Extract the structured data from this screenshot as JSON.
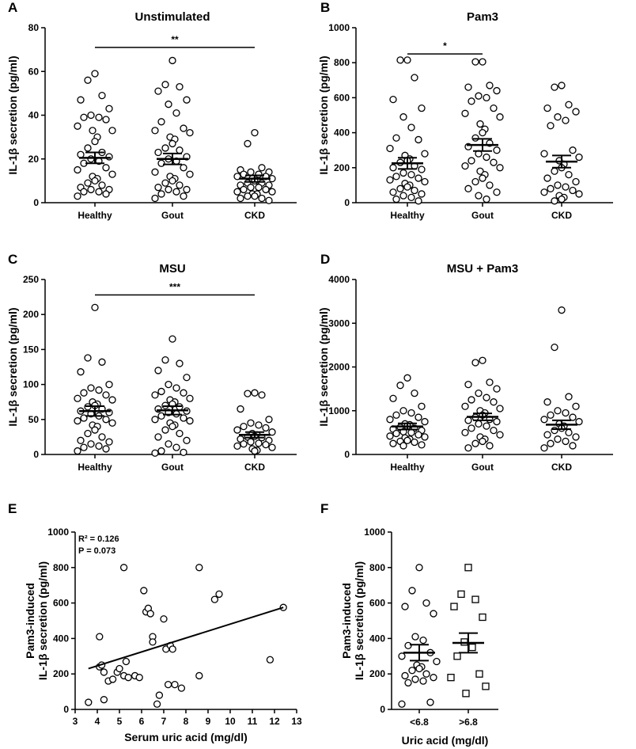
{
  "chart_data": [
    {
      "id": "A",
      "letter": "A",
      "type": "scatter",
      "title": "Unstimulated",
      "ylabel": "IL-1β secretion (pg/ml)",
      "ylim": [
        0,
        80
      ],
      "yticks": [
        0,
        20,
        40,
        60,
        80
      ],
      "categories": [
        "Healthy",
        "Gout",
        "CKD"
      ],
      "groups": [
        {
          "name": "Healthy",
          "mean": 20.5,
          "sem": 2.5,
          "values": [
            59,
            56,
            49,
            47,
            43,
            40,
            39,
            39,
            38,
            35,
            33,
            33,
            30,
            28,
            25,
            23,
            22,
            21,
            20,
            19,
            18,
            16,
            15,
            13,
            12,
            11,
            10,
            9,
            8,
            7,
            6,
            6,
            5,
            5,
            4,
            3
          ]
        },
        {
          "name": "Gout",
          "mean": 20.0,
          "sem": 2.5,
          "values": [
            65,
            54,
            53,
            51,
            47,
            45,
            41,
            37,
            34,
            33,
            32,
            30,
            29,
            27,
            25,
            24,
            23,
            21,
            20,
            19,
            18,
            16,
            14,
            13,
            12,
            11,
            10,
            9,
            8,
            7,
            6,
            6,
            5,
            4,
            3,
            2
          ]
        },
        {
          "name": "CKD",
          "mean": 11.0,
          "sem": 1.5,
          "values": [
            32,
            27,
            16,
            15,
            14,
            14,
            13,
            13,
            12,
            12,
            11,
            11,
            10,
            10,
            9,
            9,
            8,
            8,
            7,
            7,
            6,
            6,
            5,
            5,
            4,
            4,
            3,
            3,
            2,
            2,
            1
          ]
        }
      ],
      "sig": [
        {
          "from": "Healthy",
          "to": "CKD",
          "y": 71,
          "label": "**"
        }
      ]
    },
    {
      "id": "B",
      "letter": "B",
      "type": "scatter",
      "title": "Pam3",
      "ylabel": "IL-1β secretion (pg/ml)",
      "ylim": [
        0,
        1000
      ],
      "yticks": [
        0,
        200,
        400,
        600,
        800,
        1000
      ],
      "categories": [
        "Healthy",
        "Gout",
        "CKD"
      ],
      "groups": [
        {
          "name": "Healthy",
          "mean": 225,
          "sem": 32,
          "values": [
            815,
            815,
            715,
            590,
            540,
            490,
            430,
            370,
            360,
            310,
            280,
            270,
            250,
            240,
            230,
            210,
            200,
            190,
            170,
            160,
            150,
            140,
            130,
            120,
            110,
            100,
            90,
            80,
            70,
            60,
            50,
            40,
            30,
            20,
            10
          ]
        },
        {
          "name": "Gout",
          "mean": 330,
          "sem": 35,
          "values": [
            805,
            805,
            670,
            660,
            640,
            610,
            600,
            580,
            540,
            510,
            490,
            450,
            420,
            400,
            370,
            340,
            320,
            300,
            280,
            260,
            240,
            230,
            210,
            200,
            180,
            160,
            140,
            120,
            100,
            80,
            60,
            40,
            20
          ]
        },
        {
          "name": "CKD",
          "mean": 235,
          "sem": 35,
          "values": [
            670,
            660,
            560,
            540,
            520,
            490,
            470,
            440,
            300,
            280,
            260,
            240,
            220,
            200,
            180,
            160,
            140,
            120,
            100,
            90,
            80,
            70,
            60,
            50,
            40,
            30,
            20,
            10
          ]
        }
      ],
      "sig": [
        {
          "from": "Healthy",
          "to": "Gout",
          "y": 850,
          "label": "*"
        }
      ]
    },
    {
      "id": "C",
      "letter": "C",
      "type": "scatter",
      "title": "MSU",
      "ylabel": "IL-1β secretion (pg/ml)",
      "ylim": [
        0,
        250
      ],
      "yticks": [
        0,
        50,
        100,
        150,
        200,
        250
      ],
      "categories": [
        "Healthy",
        "Gout",
        "CKD"
      ],
      "groups": [
        {
          "name": "Healthy",
          "mean": 62,
          "sem": 7,
          "values": [
            210,
            138,
            132,
            118,
            100,
            95,
            92,
            88,
            85,
            80,
            78,
            75,
            72,
            70,
            68,
            65,
            62,
            60,
            58,
            55,
            52,
            50,
            48,
            45,
            42,
            40,
            35,
            30,
            25,
            20,
            18,
            15,
            12,
            10,
            8,
            5
          ]
        },
        {
          "name": "Gout",
          "mean": 63,
          "sem": 6,
          "values": [
            165,
            135,
            130,
            120,
            110,
            100,
            95,
            90,
            88,
            85,
            80,
            78,
            75,
            72,
            70,
            68,
            65,
            62,
            60,
            58,
            55,
            52,
            50,
            48,
            45,
            42,
            40,
            35,
            30,
            25,
            20,
            15,
            10,
            5,
            3,
            2
          ]
        },
        {
          "name": "CKD",
          "mean": 28,
          "sem": 4,
          "values": [
            88,
            87,
            85,
            65,
            50,
            45,
            42,
            40,
            38,
            35,
            32,
            30,
            28,
            26,
            25,
            24,
            22,
            20,
            18,
            16,
            15,
            14,
            12,
            10,
            8,
            6,
            5
          ]
        }
      ],
      "sig": [
        {
          "from": "Healthy",
          "to": "CKD",
          "y": 228,
          "label": "***"
        }
      ]
    },
    {
      "id": "D",
      "letter": "D",
      "type": "scatter",
      "title": "MSU + Pam3",
      "ylabel": "IL-1β secretion (pg/ml)",
      "ylim": [
        0,
        4000
      ],
      "yticks": [
        0,
        1000,
        2000,
        3000,
        4000
      ],
      "categories": [
        "Healthy",
        "Gout",
        "CKD"
      ],
      "groups": [
        {
          "name": "Healthy",
          "mean": 640,
          "sem": 70,
          "values": [
            1750,
            1580,
            1400,
            1280,
            1100,
            1000,
            950,
            900,
            850,
            800,
            750,
            700,
            680,
            650,
            620,
            600,
            580,
            550,
            520,
            500,
            480,
            450,
            420,
            400,
            380,
            350,
            320,
            300,
            280,
            250,
            220,
            200
          ]
        },
        {
          "name": "Gout",
          "mean": 860,
          "sem": 80,
          "values": [
            2150,
            2100,
            1650,
            1600,
            1500,
            1400,
            1300,
            1250,
            1200,
            1100,
            1050,
            1000,
            950,
            900,
            850,
            800,
            780,
            750,
            700,
            650,
            600,
            550,
            500,
            450,
            400,
            350,
            300,
            250,
            200,
            150
          ]
        },
        {
          "name": "CKD",
          "mean": 680,
          "sem": 100,
          "values": [
            3300,
            2450,
            1320,
            1200,
            1100,
            1000,
            950,
            900,
            850,
            800,
            750,
            700,
            650,
            600,
            550,
            500,
            450,
            400,
            350,
            300,
            250,
            200,
            150
          ]
        }
      ],
      "sig": []
    },
    {
      "id": "E",
      "letter": "E",
      "type": "scatter",
      "ylabel": [
        "Pam3-induced",
        "IL-1β secretion (pg/ml)"
      ],
      "xlabel": "Serum uric acid (mg/dl)",
      "xlim": [
        3,
        13
      ],
      "xticks": [
        3,
        4,
        5,
        6,
        7,
        8,
        9,
        10,
        11,
        12,
        13
      ],
      "ylim": [
        0,
        1000
      ],
      "yticks": [
        0,
        200,
        400,
        600,
        800,
        1000
      ],
      "stats": {
        "r2_label": "R² = 0.126",
        "p_label": "P = 0.073"
      },
      "points": [
        [
          3.6,
          40
        ],
        [
          4.1,
          410
        ],
        [
          4.1,
          240
        ],
        [
          4.2,
          250
        ],
        [
          4.3,
          210
        ],
        [
          4.3,
          55
        ],
        [
          4.5,
          160
        ],
        [
          4.7,
          170
        ],
        [
          4.9,
          210
        ],
        [
          5.0,
          230
        ],
        [
          5.2,
          190
        ],
        [
          5.2,
          800
        ],
        [
          5.3,
          270
        ],
        [
          5.4,
          180
        ],
        [
          5.7,
          190
        ],
        [
          5.9,
          180
        ],
        [
          6.1,
          670
        ],
        [
          6.2,
          550
        ],
        [
          6.3,
          570
        ],
        [
          6.4,
          540
        ],
        [
          6.5,
          410
        ],
        [
          6.5,
          380
        ],
        [
          6.7,
          30
        ],
        [
          6.8,
          80
        ],
        [
          7.0,
          510
        ],
        [
          7.1,
          340
        ],
        [
          7.2,
          140
        ],
        [
          7.3,
          360
        ],
        [
          7.4,
          340
        ],
        [
          7.5,
          140
        ],
        [
          7.8,
          120
        ],
        [
          8.6,
          800
        ],
        [
          8.6,
          190
        ],
        [
          9.3,
          620
        ],
        [
          9.5,
          650
        ],
        [
          11.8,
          280
        ],
        [
          12.4,
          575
        ]
      ],
      "line": {
        "x": [
          3.6,
          12.4
        ],
        "y": [
          230,
          575
        ]
      }
    },
    {
      "id": "F",
      "letter": "F",
      "type": "scatter",
      "ylabel": [
        "Pam3-induced",
        "IL-1β secretion (pg/ml)"
      ],
      "xlabel": "Uric acid (mg/dl)",
      "ylim": [
        0,
        1000
      ],
      "yticks": [
        0,
        200,
        400,
        600,
        800,
        1000
      ],
      "categories": [
        "<6.8",
        ">6.8"
      ],
      "groups": [
        {
          "name": "<6.8",
          "marker": "circle",
          "mean": 320,
          "sem": 45,
          "values": [
            800,
            670,
            600,
            580,
            540,
            410,
            390,
            360,
            320,
            300,
            270,
            250,
            240,
            230,
            220,
            200,
            190,
            180,
            170,
            160,
            150,
            40,
            30
          ]
        },
        {
          "name": ">6.8",
          "marker": "square",
          "mean": 375,
          "sem": 55,
          "values": [
            800,
            650,
            620,
            580,
            520,
            380,
            350,
            300,
            200,
            180,
            130,
            90
          ]
        }
      ]
    }
  ]
}
